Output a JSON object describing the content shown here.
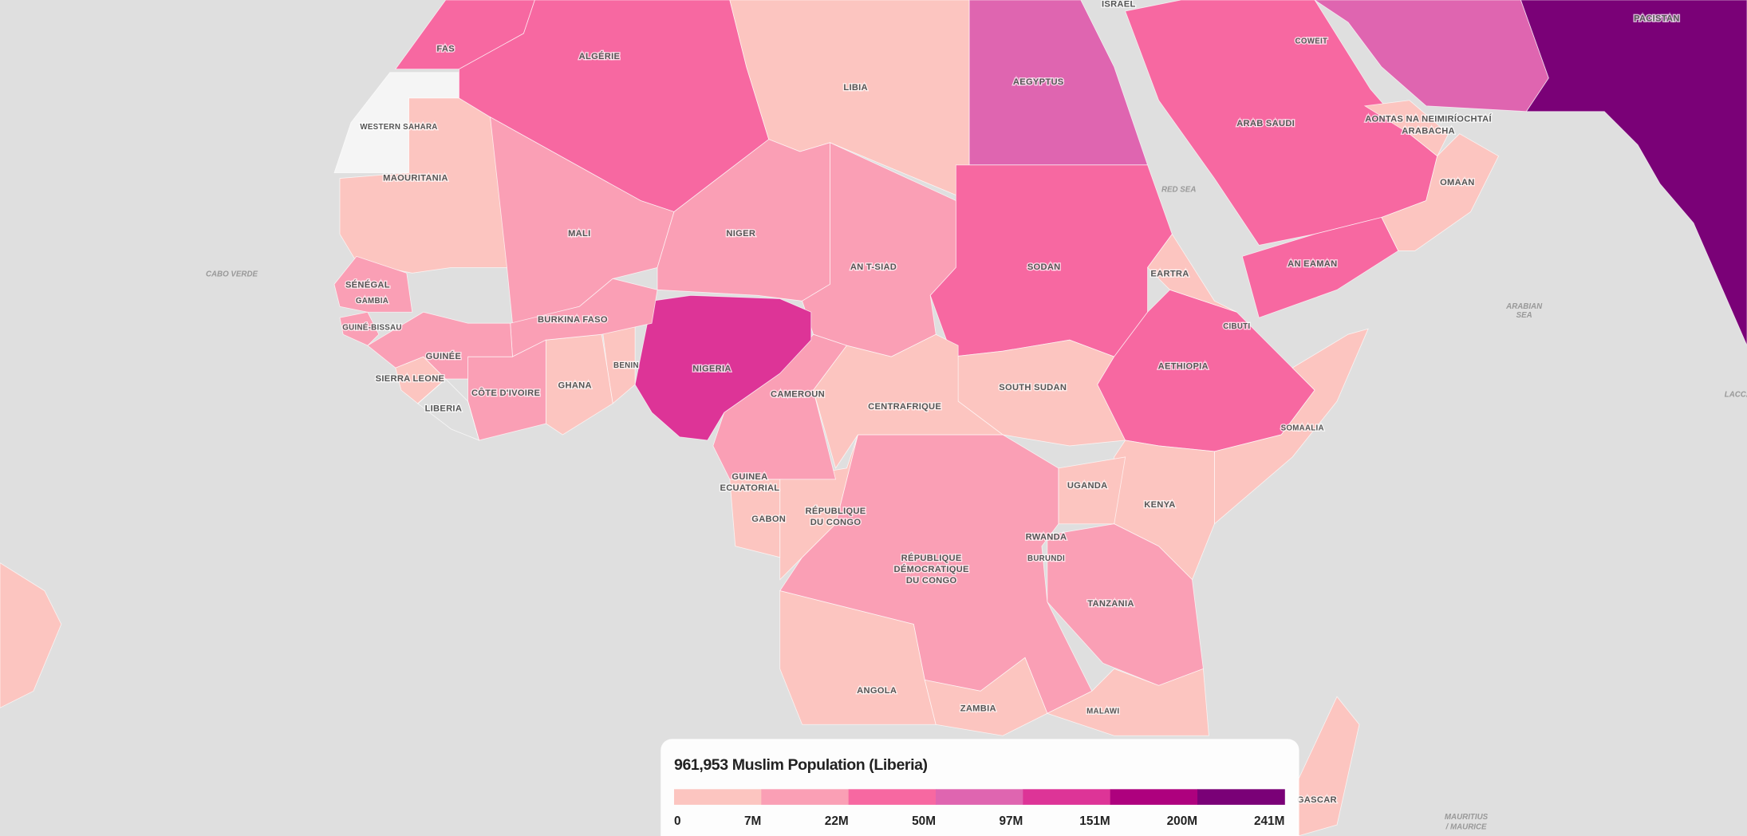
{
  "info_box": {
    "title": "961,953 Muslim Population (Liberia)"
  },
  "legend": {
    "colors": [
      "#fcc5c0",
      "#fa9fb5",
      "#f768a1",
      "#df65b0",
      "#dd3497",
      "#ae017e",
      "#7a0177"
    ],
    "ticks": [
      "0",
      "7M",
      "22M",
      "50M",
      "97M",
      "151M",
      "200M",
      "241M"
    ]
  },
  "map": {
    "countries": [
      "FAS",
      "ALGÉRIE",
      "LIBIA",
      "AEGYPTUS",
      "ISRAEL",
      "WESTERN SAHARA",
      "MAOURITANIA",
      "MALI",
      "NIGER",
      "AN T-SIAD",
      "SODAN",
      "ARAB SAUDI",
      "COWEIT",
      "PACISTAN",
      "AONTAS NA NEIMIRÍOCHTAÍ",
      "ARABACHA",
      "OMAAN",
      "AN EAMAN",
      "EARTRA",
      "CIBUTI",
      "SÉNÉGAL",
      "GAMBIA",
      "GUINÉ-BISSAU",
      "GUINÉE",
      "SIERRA LEONE",
      "LIBERIA",
      "CÔTE D'IVOIRE",
      "GHANA",
      "BENIN",
      "BURKINA FASO",
      "NIGERIA",
      "CAMEROUN",
      "CENTRAFRIQUE",
      "SOUTH SUDAN",
      "AETHIOPIA",
      "SOMAALIA",
      "GUINEA",
      "ECUATORIAL",
      "GABON",
      "RÉPUBLIQUE",
      "DU CONGO",
      "UGANDA",
      "KENYA",
      "RWANDA",
      "BURUNDI",
      "RÉPUBLIQUE",
      "DÉMOCRATIQUE",
      "DU CONGO",
      "TANZANIA",
      "ANGOLA",
      "ZAMBIA",
      "MALAWI",
      "GASCAR"
    ],
    "water": [
      "CABO VERDE",
      "RED SEA",
      "ARABIAN",
      "SEA",
      "MAURITIUS",
      "/ MAURICE",
      "LACCA"
    ]
  }
}
